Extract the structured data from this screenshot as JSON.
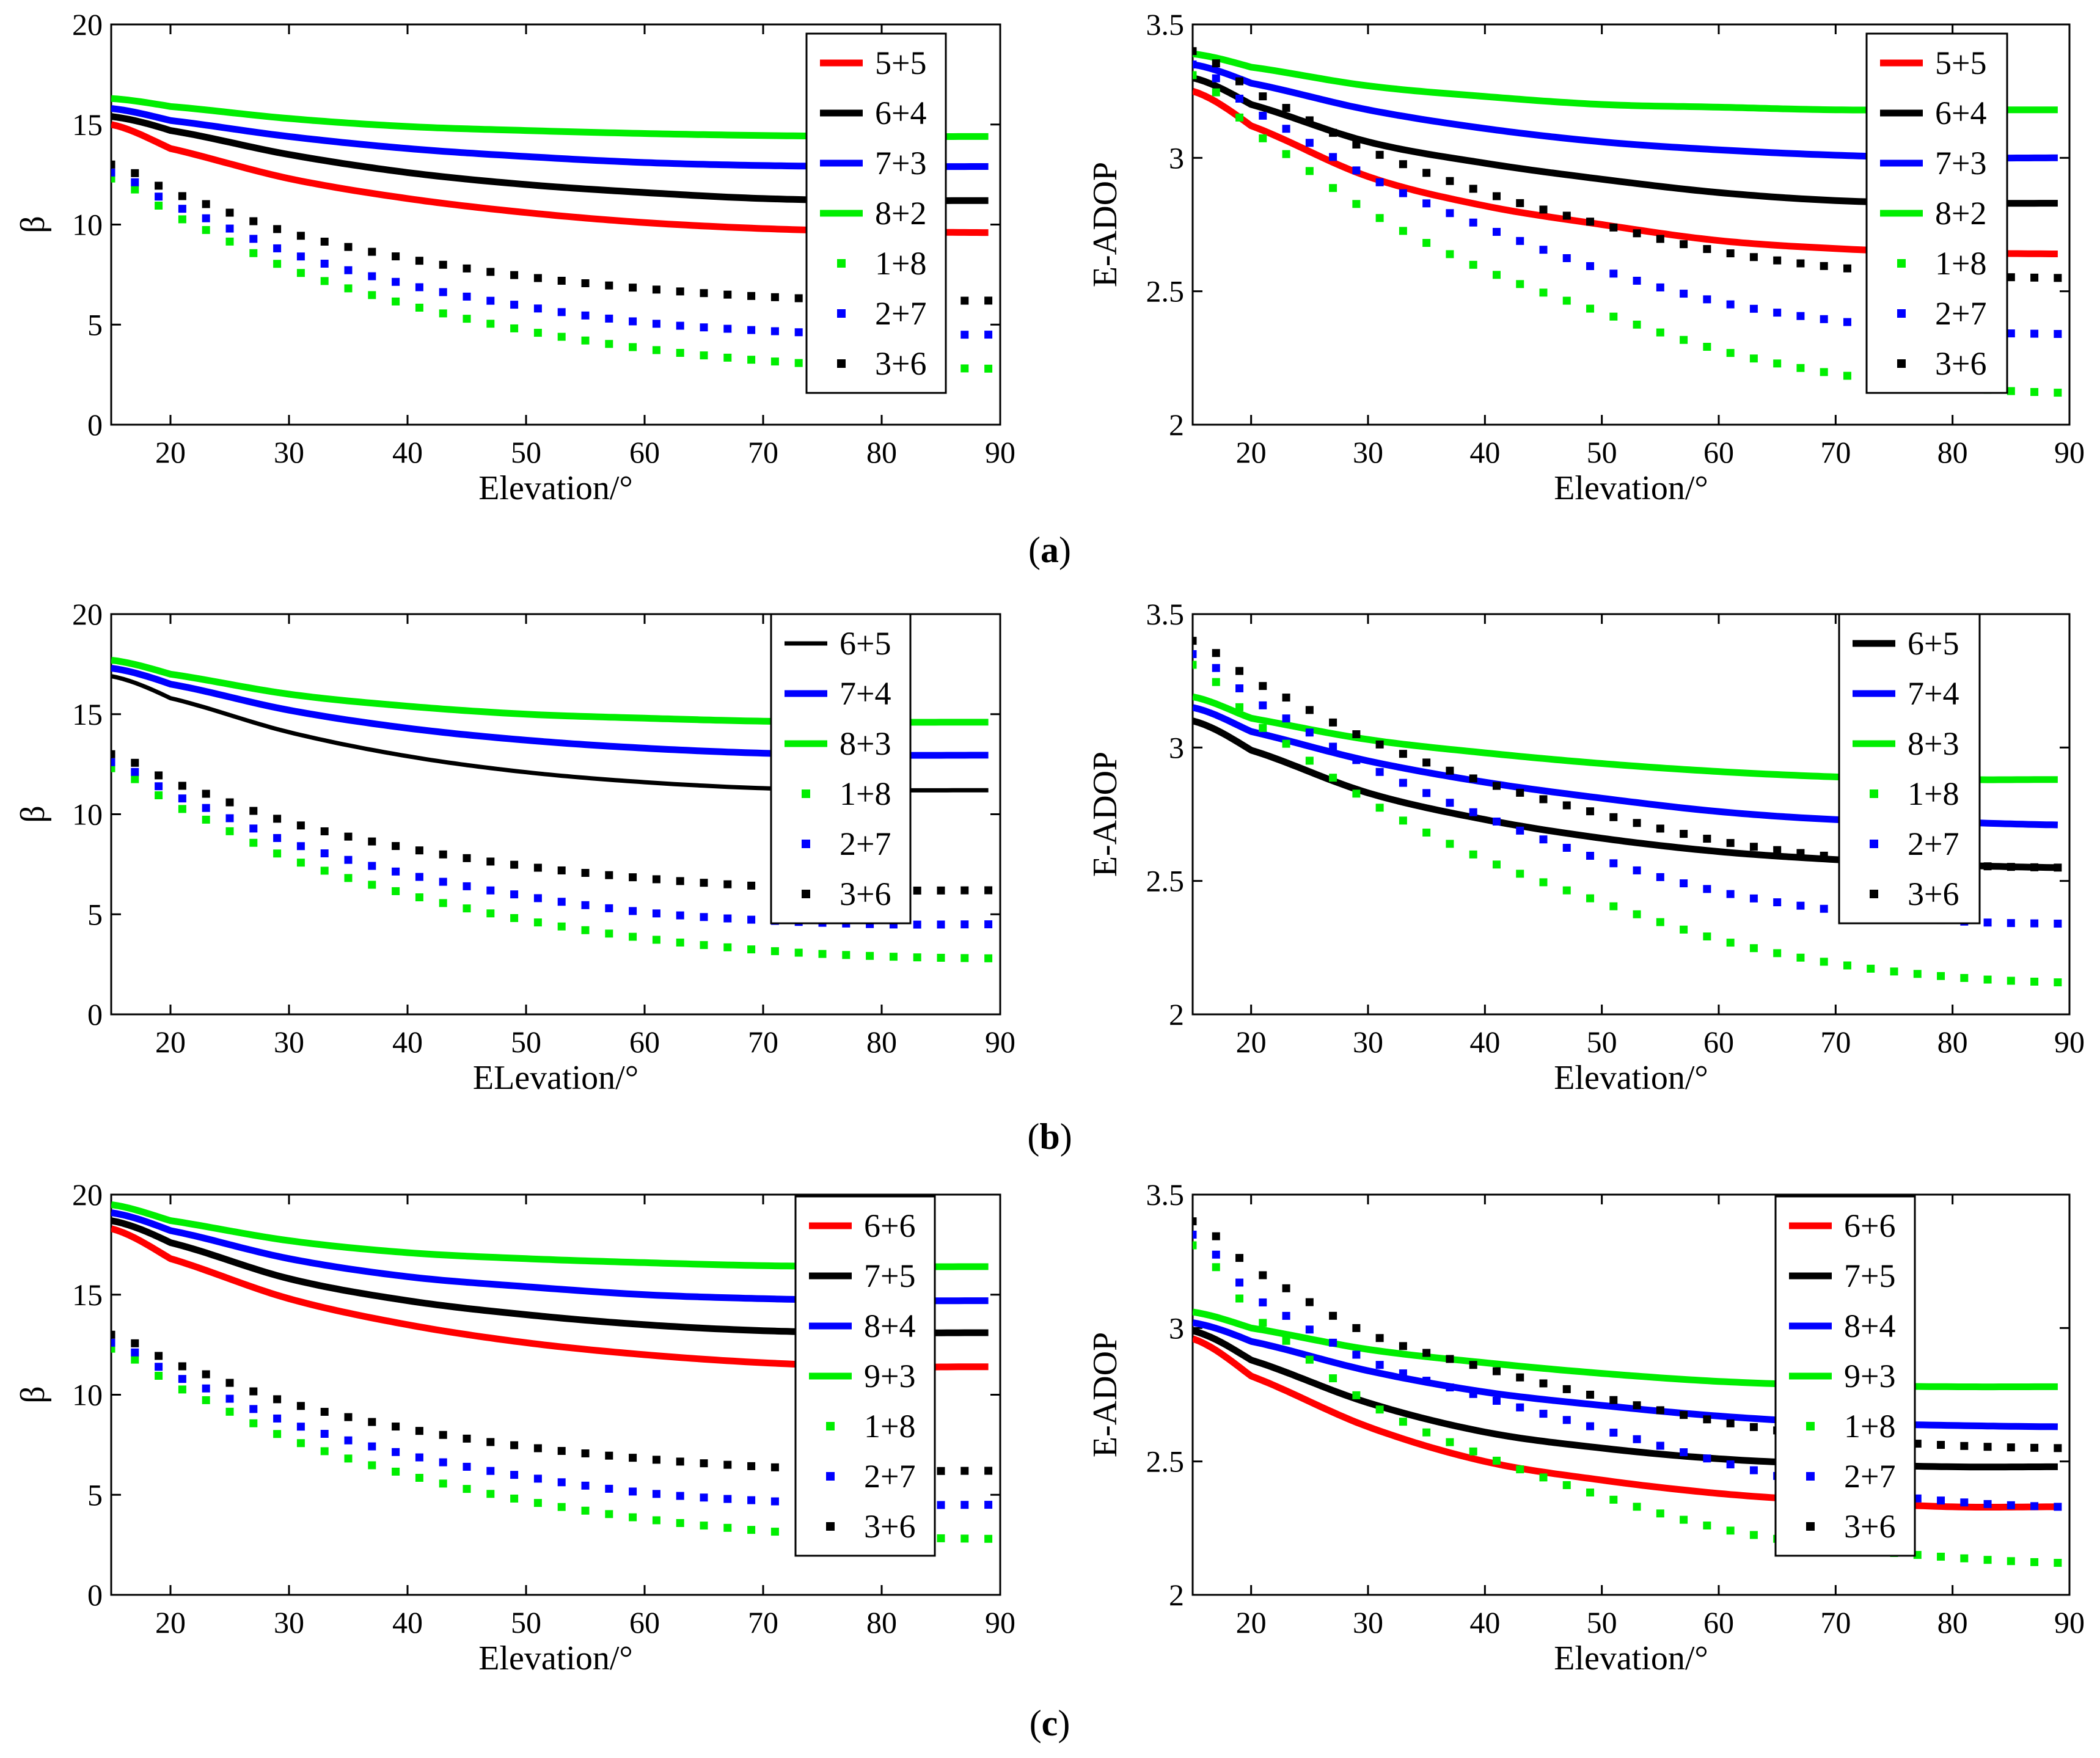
{
  "figure": {
    "captions": [
      "(a)",
      "(b)",
      "(c)"
    ]
  },
  "colors": {
    "red": "#ff0000",
    "black": "#000000",
    "blue": "#0000ff",
    "green": "#00ee00"
  },
  "chart_data": [
    {
      "id": "a-beta",
      "type": "line",
      "row": 0,
      "col": 0,
      "xlabel": "Elevation/°",
      "ylabel": "β",
      "xlim": [
        15,
        90
      ],
      "ylim": [
        0,
        20
      ],
      "xticks": [
        20,
        30,
        40,
        50,
        60,
        70,
        80,
        90
      ],
      "yticks": [
        0,
        5,
        10,
        15,
        20
      ],
      "x": [
        15,
        20,
        30,
        40,
        50,
        60,
        70,
        80,
        89
      ],
      "series": [
        {
          "name": "5+5",
          "color": "#ff0000",
          "style": "solid",
          "values": [
            15.0,
            13.8,
            12.3,
            11.3,
            10.6,
            10.1,
            9.8,
            9.65,
            9.6
          ]
        },
        {
          "name": "6+4",
          "color": "#000000",
          "style": "solid",
          "values": [
            15.4,
            14.7,
            13.5,
            12.6,
            12.0,
            11.6,
            11.3,
            11.2,
            11.2
          ]
        },
        {
          "name": "7+3",
          "color": "#0000ff",
          "style": "solid",
          "values": [
            15.8,
            15.2,
            14.4,
            13.8,
            13.4,
            13.1,
            12.95,
            12.9,
            12.9
          ]
        },
        {
          "name": "8+2",
          "color": "#00ee00",
          "style": "solid",
          "values": [
            16.3,
            15.9,
            15.3,
            14.9,
            14.7,
            14.55,
            14.45,
            14.4,
            14.4
          ]
        },
        {
          "name": "1+8",
          "color": "#00ee00",
          "style": "dotted",
          "values": [
            12.3,
            10.5,
            7.8,
            6.0,
            4.7,
            3.8,
            3.2,
            2.9,
            2.8
          ]
        },
        {
          "name": "2+7",
          "color": "#0000ff",
          "style": "dotted",
          "values": [
            12.6,
            11.0,
            8.6,
            7.0,
            5.9,
            5.1,
            4.7,
            4.5,
            4.5
          ]
        },
        {
          "name": "3+6",
          "color": "#000000",
          "style": "dotted",
          "values": [
            13.0,
            11.6,
            9.6,
            8.3,
            7.4,
            6.8,
            6.4,
            6.2,
            6.2
          ]
        }
      ]
    },
    {
      "id": "a-eadop",
      "type": "line",
      "row": 0,
      "col": 1,
      "xlabel": "Elevation/°",
      "ylabel": "E-ADOP",
      "xlim": [
        15,
        90
      ],
      "ylim": [
        2,
        3.5
      ],
      "xticks": [
        20,
        30,
        40,
        50,
        60,
        70,
        80,
        90
      ],
      "yticks": [
        2,
        2.5,
        3,
        3.5
      ],
      "x": [
        15,
        20,
        30,
        40,
        50,
        60,
        70,
        80,
        89
      ],
      "series": [
        {
          "name": "5+5",
          "color": "#ff0000",
          "style": "solid",
          "values": [
            3.25,
            3.12,
            2.93,
            2.82,
            2.75,
            2.69,
            2.66,
            2.645,
            2.64
          ]
        },
        {
          "name": "6+4",
          "color": "#000000",
          "style": "solid",
          "values": [
            3.3,
            3.2,
            3.06,
            2.98,
            2.92,
            2.87,
            2.84,
            2.83,
            2.83
          ]
        },
        {
          "name": "7+3",
          "color": "#0000ff",
          "style": "solid",
          "values": [
            3.35,
            3.28,
            3.18,
            3.11,
            3.06,
            3.03,
            3.01,
            3.0,
            3.0
          ]
        },
        {
          "name": "8+2",
          "color": "#00ee00",
          "style": "solid",
          "values": [
            3.39,
            3.34,
            3.27,
            3.23,
            3.2,
            3.19,
            3.18,
            3.18,
            3.18
          ]
        },
        {
          "name": "1+8",
          "color": "#00ee00",
          "style": "dotted",
          "values": [
            3.31,
            3.1,
            2.8,
            2.58,
            2.42,
            2.28,
            2.19,
            2.14,
            2.12
          ]
        },
        {
          "name": "2+7",
          "color": "#0000ff",
          "style": "dotted",
          "values": [
            3.35,
            3.18,
            2.93,
            2.74,
            2.58,
            2.46,
            2.39,
            2.35,
            2.34
          ]
        },
        {
          "name": "3+6",
          "color": "#000000",
          "style": "dotted",
          "values": [
            3.4,
            3.25,
            3.03,
            2.87,
            2.75,
            2.65,
            2.59,
            2.56,
            2.55
          ]
        }
      ]
    },
    {
      "id": "b-beta",
      "type": "line",
      "row": 1,
      "col": 0,
      "xlabel": "ELevation/°",
      "ylabel": "β",
      "xlim": [
        15,
        90
      ],
      "ylim": [
        0,
        20
      ],
      "xticks": [
        20,
        30,
        40,
        50,
        60,
        70,
        80,
        90
      ],
      "yticks": [
        0,
        5,
        10,
        15,
        20
      ],
      "x": [
        15,
        20,
        30,
        40,
        50,
        60,
        70,
        80,
        89
      ],
      "series": [
        {
          "name": "6+5",
          "color": "#000000",
          "style": "solid",
          "thin": true,
          "values": [
            16.9,
            15.8,
            14.1,
            12.9,
            12.1,
            11.6,
            11.3,
            11.2,
            11.2
          ]
        },
        {
          "name": "7+4",
          "color": "#0000ff",
          "style": "solid",
          "values": [
            17.3,
            16.5,
            15.2,
            14.3,
            13.7,
            13.3,
            13.05,
            12.95,
            12.95
          ]
        },
        {
          "name": "8+3",
          "color": "#00ee00",
          "style": "solid",
          "values": [
            17.7,
            17.0,
            16.0,
            15.4,
            15.0,
            14.8,
            14.65,
            14.6,
            14.6
          ]
        },
        {
          "name": "1+8",
          "color": "#00ee00",
          "style": "dotted",
          "values": [
            12.3,
            10.5,
            7.8,
            6.0,
            4.7,
            3.8,
            3.2,
            2.9,
            2.8
          ]
        },
        {
          "name": "2+7",
          "color": "#0000ff",
          "style": "dotted",
          "values": [
            12.6,
            11.0,
            8.6,
            7.0,
            5.9,
            5.1,
            4.7,
            4.5,
            4.5
          ]
        },
        {
          "name": "3+6",
          "color": "#000000",
          "style": "dotted",
          "values": [
            13.0,
            11.6,
            9.6,
            8.3,
            7.4,
            6.8,
            6.4,
            6.2,
            6.2
          ]
        }
      ]
    },
    {
      "id": "b-eadop",
      "type": "line",
      "row": 1,
      "col": 1,
      "xlabel": "Elevation/°",
      "ylabel": "E-ADOP",
      "xlim": [
        15,
        90
      ],
      "ylim": [
        2,
        3.5
      ],
      "xticks": [
        20,
        30,
        40,
        50,
        60,
        70,
        80,
        90
      ],
      "yticks": [
        2,
        2.5,
        3,
        3.5
      ],
      "x": [
        15,
        20,
        30,
        40,
        50,
        60,
        70,
        80,
        89
      ],
      "series": [
        {
          "name": "6+5",
          "color": "#000000",
          "style": "solid",
          "values": [
            3.1,
            2.99,
            2.83,
            2.73,
            2.66,
            2.61,
            2.58,
            2.56,
            2.55
          ]
        },
        {
          "name": "7+4",
          "color": "#0000ff",
          "style": "solid",
          "values": [
            3.15,
            3.06,
            2.95,
            2.87,
            2.81,
            2.76,
            2.73,
            2.72,
            2.71
          ]
        },
        {
          "name": "8+3",
          "color": "#00ee00",
          "style": "solid",
          "values": [
            3.19,
            3.11,
            3.03,
            2.98,
            2.94,
            2.91,
            2.89,
            2.88,
            2.88
          ]
        },
        {
          "name": "1+8",
          "color": "#00ee00",
          "style": "dotted",
          "values": [
            3.31,
            3.1,
            2.8,
            2.58,
            2.42,
            2.28,
            2.19,
            2.14,
            2.12
          ]
        },
        {
          "name": "2+7",
          "color": "#0000ff",
          "style": "dotted",
          "values": [
            3.35,
            3.18,
            2.93,
            2.74,
            2.58,
            2.46,
            2.39,
            2.35,
            2.34
          ]
        },
        {
          "name": "3+6",
          "color": "#000000",
          "style": "dotted",
          "values": [
            3.4,
            3.25,
            3.03,
            2.87,
            2.75,
            2.65,
            2.59,
            2.56,
            2.55
          ]
        }
      ]
    },
    {
      "id": "c-beta",
      "type": "line",
      "row": 2,
      "col": 0,
      "xlabel": "Elevation/°",
      "ylabel": "β",
      "xlim": [
        15,
        90
      ],
      "ylim": [
        0,
        20
      ],
      "xticks": [
        20,
        30,
        40,
        50,
        60,
        70,
        80,
        90
      ],
      "yticks": [
        0,
        5,
        10,
        15,
        20
      ],
      "x": [
        15,
        20,
        30,
        40,
        50,
        60,
        70,
        80,
        89
      ],
      "series": [
        {
          "name": "6+6",
          "color": "#ff0000",
          "style": "solid",
          "values": [
            18.3,
            16.8,
            14.8,
            13.5,
            12.6,
            12.0,
            11.6,
            11.4,
            11.4
          ]
        },
        {
          "name": "7+5",
          "color": "#000000",
          "style": "solid",
          "values": [
            18.7,
            17.6,
            15.8,
            14.7,
            14.0,
            13.5,
            13.2,
            13.1,
            13.1
          ]
        },
        {
          "name": "8+4",
          "color": "#0000ff",
          "style": "solid",
          "values": [
            19.1,
            18.2,
            16.8,
            15.9,
            15.4,
            15.0,
            14.8,
            14.7,
            14.7
          ]
        },
        {
          "name": "9+3",
          "color": "#00ee00",
          "style": "solid",
          "values": [
            19.5,
            18.7,
            17.7,
            17.1,
            16.8,
            16.6,
            16.45,
            16.4,
            16.4
          ]
        },
        {
          "name": "1+8",
          "color": "#00ee00",
          "style": "dotted",
          "values": [
            12.3,
            10.5,
            7.8,
            6.0,
            4.7,
            3.8,
            3.2,
            2.9,
            2.8
          ]
        },
        {
          "name": "2+7",
          "color": "#0000ff",
          "style": "dotted",
          "values": [
            12.6,
            11.0,
            8.6,
            7.0,
            5.9,
            5.1,
            4.7,
            4.5,
            4.5
          ]
        },
        {
          "name": "3+6",
          "color": "#000000",
          "style": "dotted",
          "values": [
            13.0,
            11.6,
            9.6,
            8.3,
            7.4,
            6.8,
            6.4,
            6.2,
            6.2
          ]
        }
      ]
    },
    {
      "id": "c-eadop",
      "type": "line",
      "row": 2,
      "col": 1,
      "xlabel": "Elevation/°",
      "ylabel": "E-ADOP",
      "xlim": [
        15,
        90
      ],
      "ylim": [
        2,
        3.5
      ],
      "xticks": [
        20,
        30,
        40,
        50,
        60,
        70,
        80,
        90
      ],
      "yticks": [
        2,
        2.5,
        3,
        3.5
      ],
      "x": [
        15,
        20,
        30,
        40,
        50,
        60,
        70,
        80,
        89
      ],
      "series": [
        {
          "name": "6+6",
          "color": "#ff0000",
          "style": "solid",
          "values": [
            2.96,
            2.82,
            2.63,
            2.5,
            2.43,
            2.38,
            2.35,
            2.33,
            2.33
          ]
        },
        {
          "name": "7+5",
          "color": "#000000",
          "style": "solid",
          "values": [
            2.99,
            2.88,
            2.72,
            2.61,
            2.55,
            2.51,
            2.49,
            2.48,
            2.48
          ]
        },
        {
          "name": "8+4",
          "color": "#0000ff",
          "style": "solid",
          "values": [
            3.02,
            2.95,
            2.84,
            2.76,
            2.71,
            2.67,
            2.645,
            2.635,
            2.63
          ]
        },
        {
          "name": "9+3",
          "color": "#00ee00",
          "style": "solid",
          "values": [
            3.06,
            3.0,
            2.92,
            2.87,
            2.83,
            2.8,
            2.785,
            2.78,
            2.78
          ]
        },
        {
          "name": "1+8",
          "color": "#00ee00",
          "style": "dotted",
          "values": [
            3.31,
            3.05,
            2.72,
            2.52,
            2.37,
            2.25,
            2.18,
            2.14,
            2.12
          ]
        },
        {
          "name": "2+7",
          "color": "#0000ff",
          "style": "dotted",
          "values": [
            3.35,
            3.12,
            2.88,
            2.74,
            2.62,
            2.5,
            2.4,
            2.35,
            2.33
          ]
        },
        {
          "name": "3+6",
          "color": "#000000",
          "style": "dotted",
          "values": [
            3.4,
            3.22,
            2.98,
            2.85,
            2.74,
            2.65,
            2.59,
            2.56,
            2.55
          ]
        }
      ]
    }
  ]
}
